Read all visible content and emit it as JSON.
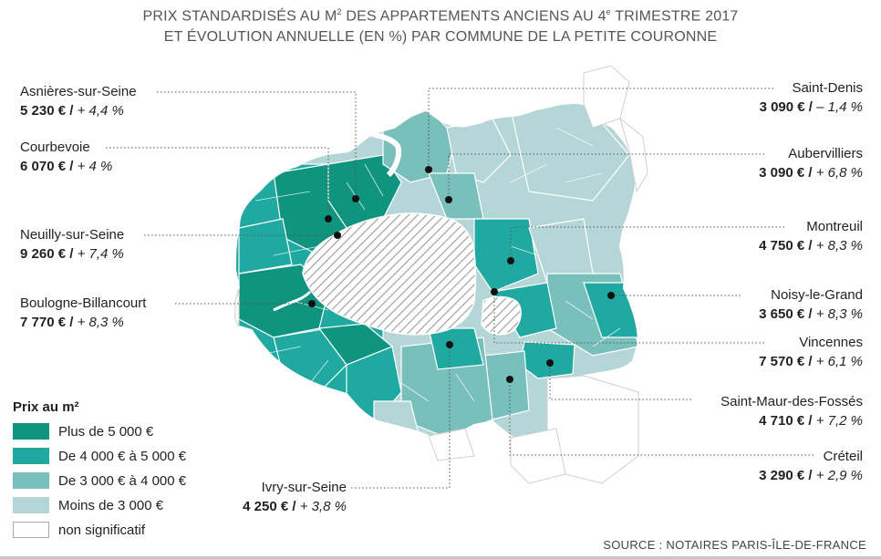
{
  "title": {
    "line1_prefix": "PRIX STANDARDISÉS AU M",
    "line1_sup": "2",
    "line1_mid": " DES APPARTEMENTS ANCIENS AU 4",
    "line1_sup2": "e",
    "line1_suffix": " TRIMESTRE 2017",
    "line2": "ET ÉVOLUTION ANNUELLE (EN %) PAR COMMUNE DE LA PETITE COURONNE"
  },
  "colors": {
    "plus_5000": "#0f9480",
    "de_4000_5000": "#1fa9a1",
    "de_3000_4000": "#79bfbc",
    "moins_3000": "#b5d6d7",
    "non_significatif": "#ffffff",
    "outline": "#cfcfcf"
  },
  "communes": [
    {
      "name": "Asnières-sur-Seine",
      "price": "5 230 €",
      "change": "+ 4,4 %",
      "side": "left"
    },
    {
      "name": "Courbevoie",
      "price": "6 070 €",
      "change": "+ 4 %",
      "side": "left"
    },
    {
      "name": "Neuilly-sur-Seine",
      "price": "9 260 €",
      "change": "+ 7,4 %",
      "side": "left"
    },
    {
      "name": "Boulogne-Billancourt",
      "price": "7 770 €",
      "change": "+ 8,3 %",
      "side": "left"
    },
    {
      "name": "Ivry-sur-Seine",
      "price": "4 250 €",
      "change": "+ 3,8 %",
      "side": "bottom"
    },
    {
      "name": "Saint-Denis",
      "price": "3 090 €",
      "change": "– 1,4 %",
      "side": "right"
    },
    {
      "name": "Aubervilliers",
      "price": "3 090 €",
      "change": "+ 6,8 %",
      "side": "right"
    },
    {
      "name": "Montreuil",
      "price": "4 750 €",
      "change": "+ 8,3 %",
      "side": "right"
    },
    {
      "name": "Noisy-le-Grand",
      "price": "3 650 €",
      "change": "+ 8,3 %",
      "side": "right"
    },
    {
      "name": "Vincennes",
      "price": "7 570 €",
      "change": "+ 6,1 %",
      "side": "right"
    },
    {
      "name": "Saint-Maur-des-Fossés",
      "price": "4 710 €",
      "change": "+ 7,2 %",
      "side": "right"
    },
    {
      "name": "Créteil",
      "price": "3 290 €",
      "change": "+ 2,9 %",
      "side": "right"
    }
  ],
  "legend": {
    "title": "Prix au m²",
    "items": [
      {
        "label": "Plus de 5 000 €"
      },
      {
        "label": "De 4 000 € à 5 000 €"
      },
      {
        "label": "De 3 000 € à 4 000 €"
      },
      {
        "label": "Moins de 3 000 €"
      },
      {
        "label": "non significatif"
      }
    ]
  },
  "separator": " / ",
  "source": "SOURCE : NOTAIRES PARIS-ÎLE-DE-FRANCE"
}
